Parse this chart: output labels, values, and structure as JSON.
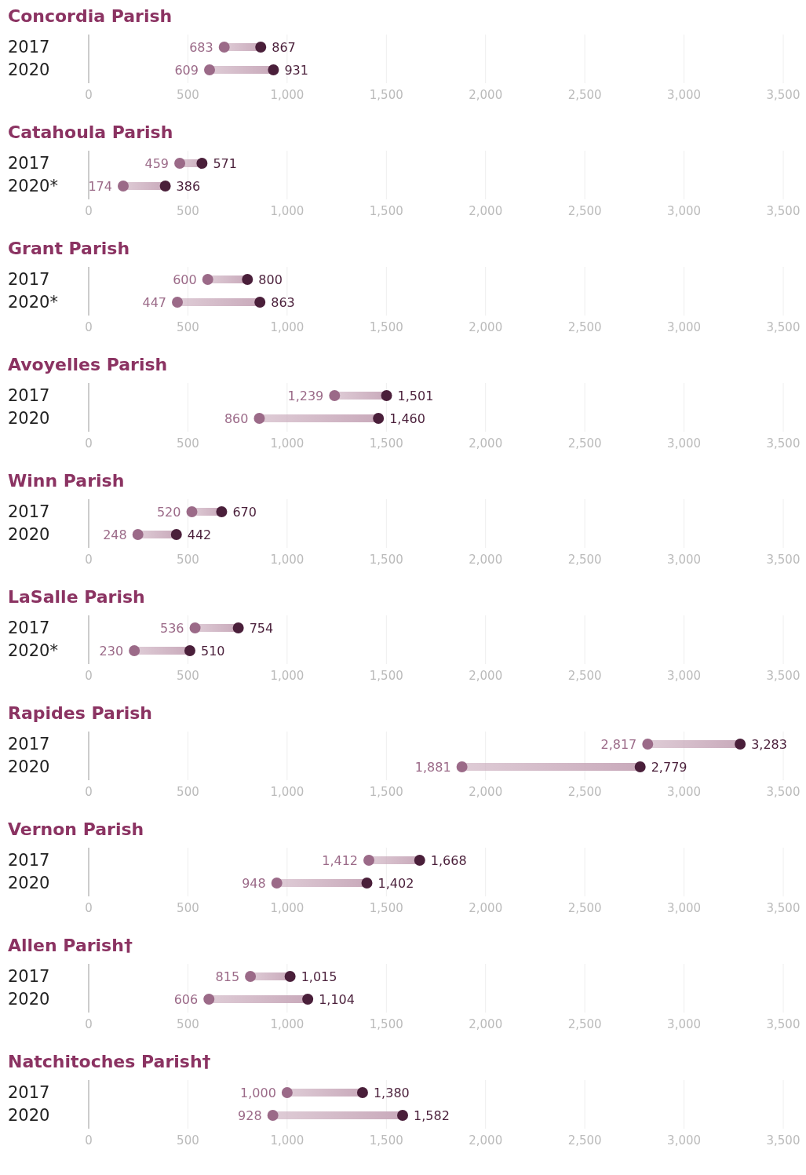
{
  "chart_data": [
    {
      "type": "scatter",
      "title": "Concordia Parish",
      "orientation": "horizontal",
      "marker": "circle",
      "grid": "x",
      "categories": [
        "2017",
        "2020"
      ],
      "xlim": [
        0,
        3500
      ],
      "xticks": [
        {
          "value": 0,
          "label": "0"
        },
        {
          "value": 500,
          "label": "500"
        },
        {
          "value": 1000,
          "label": "1,000"
        },
        {
          "value": 1500,
          "label": "1,500"
        },
        {
          "value": 2000,
          "label": "2,000"
        },
        {
          "value": 2500,
          "label": "2,500"
        },
        {
          "value": 3000,
          "label": "3,000"
        },
        {
          "value": 3500,
          "label": "3,500"
        }
      ],
      "series": [
        {
          "type": "bar",
          "color": "#c9aabb",
          "base": [
            683,
            609
          ],
          "values": [
            184,
            322
          ]
        },
        {
          "color": "#9b6a88",
          "values": [
            683,
            609
          ],
          "value_labels": [
            "683",
            "609"
          ]
        },
        {
          "color": "#4a1f3a",
          "values": [
            867,
            931
          ],
          "value_labels": [
            "867",
            "931"
          ]
        }
      ]
    },
    {
      "type": "scatter",
      "title": "Catahoula Parish",
      "orientation": "horizontal",
      "marker": "circle",
      "grid": "x",
      "categories": [
        "2017",
        "2020*"
      ],
      "xlim": [
        0,
        3500
      ],
      "xticks": [
        {
          "value": 0,
          "label": "0"
        },
        {
          "value": 500,
          "label": "500"
        },
        {
          "value": 1000,
          "label": "1,000"
        },
        {
          "value": 1500,
          "label": "1,500"
        },
        {
          "value": 2000,
          "label": "2,000"
        },
        {
          "value": 2500,
          "label": "2,500"
        },
        {
          "value": 3000,
          "label": "3,000"
        },
        {
          "value": 3500,
          "label": "3,500"
        }
      ],
      "series": [
        {
          "type": "bar",
          "color": "#c9aabb",
          "base": [
            459,
            174
          ],
          "values": [
            112,
            212
          ]
        },
        {
          "color": "#9b6a88",
          "values": [
            459,
            174
          ],
          "value_labels": [
            "459",
            "174"
          ]
        },
        {
          "color": "#4a1f3a",
          "values": [
            571,
            386
          ],
          "value_labels": [
            "571",
            "386"
          ]
        }
      ]
    },
    {
      "type": "scatter",
      "title": "Grant Parish",
      "orientation": "horizontal",
      "marker": "circle",
      "grid": "x",
      "categories": [
        "2017",
        "2020*"
      ],
      "xlim": [
        0,
        3500
      ],
      "xticks": [
        {
          "value": 0,
          "label": "0"
        },
        {
          "value": 500,
          "label": "500"
        },
        {
          "value": 1000,
          "label": "1,000"
        },
        {
          "value": 1500,
          "label": "1,500"
        },
        {
          "value": 2000,
          "label": "2,000"
        },
        {
          "value": 2500,
          "label": "2,500"
        },
        {
          "value": 3000,
          "label": "3,000"
        },
        {
          "value": 3500,
          "label": "3,500"
        }
      ],
      "series": [
        {
          "type": "bar",
          "color": "#c9aabb",
          "base": [
            600,
            447
          ],
          "values": [
            200,
            416
          ]
        },
        {
          "color": "#9b6a88",
          "values": [
            600,
            447
          ],
          "value_labels": [
            "600",
            "447"
          ]
        },
        {
          "color": "#4a1f3a",
          "values": [
            800,
            863
          ],
          "value_labels": [
            "800",
            "863"
          ]
        }
      ]
    },
    {
      "type": "scatter",
      "title": "Avoyelles Parish",
      "orientation": "horizontal",
      "marker": "circle",
      "grid": "x",
      "categories": [
        "2017",
        "2020"
      ],
      "xlim": [
        0,
        3500
      ],
      "xticks": [
        {
          "value": 0,
          "label": "0"
        },
        {
          "value": 500,
          "label": "500"
        },
        {
          "value": 1000,
          "label": "1,000"
        },
        {
          "value": 1500,
          "label": "1,500"
        },
        {
          "value": 2000,
          "label": "2,000"
        },
        {
          "value": 2500,
          "label": "2,500"
        },
        {
          "value": 3000,
          "label": "3,000"
        },
        {
          "value": 3500,
          "label": "3,500"
        }
      ],
      "series": [
        {
          "type": "bar",
          "color": "#c9aabb",
          "base": [
            1239,
            860
          ],
          "values": [
            262,
            600
          ]
        },
        {
          "color": "#9b6a88",
          "values": [
            1239,
            860
          ],
          "value_labels": [
            "1,239",
            "860"
          ]
        },
        {
          "color": "#4a1f3a",
          "values": [
            1501,
            1460
          ],
          "value_labels": [
            "1,501",
            "1,460"
          ]
        }
      ]
    },
    {
      "type": "scatter",
      "title": "Winn Parish",
      "orientation": "horizontal",
      "marker": "circle",
      "grid": "x",
      "categories": [
        "2017",
        "2020"
      ],
      "xlim": [
        0,
        3500
      ],
      "xticks": [
        {
          "value": 0,
          "label": "0"
        },
        {
          "value": 500,
          "label": "500"
        },
        {
          "value": 1000,
          "label": "1,000"
        },
        {
          "value": 1500,
          "label": "1,500"
        },
        {
          "value": 2000,
          "label": "2,000"
        },
        {
          "value": 2500,
          "label": "2,500"
        },
        {
          "value": 3000,
          "label": "3,000"
        },
        {
          "value": 3500,
          "label": "3,500"
        }
      ],
      "series": [
        {
          "type": "bar",
          "color": "#c9aabb",
          "base": [
            520,
            248
          ],
          "values": [
            150,
            194
          ]
        },
        {
          "color": "#9b6a88",
          "values": [
            520,
            248
          ],
          "value_labels": [
            "520",
            "248"
          ]
        },
        {
          "color": "#4a1f3a",
          "values": [
            670,
            442
          ],
          "value_labels": [
            "670",
            "442"
          ]
        }
      ]
    },
    {
      "type": "scatter",
      "title": "LaSalle Parish",
      "orientation": "horizontal",
      "marker": "circle",
      "grid": "x",
      "categories": [
        "2017",
        "2020*"
      ],
      "xlim": [
        0,
        3500
      ],
      "xticks": [
        {
          "value": 0,
          "label": "0"
        },
        {
          "value": 500,
          "label": "500"
        },
        {
          "value": 1000,
          "label": "1,000"
        },
        {
          "value": 1500,
          "label": "1,500"
        },
        {
          "value": 2000,
          "label": "2,000"
        },
        {
          "value": 2500,
          "label": "2,500"
        },
        {
          "value": 3000,
          "label": "3,000"
        },
        {
          "value": 3500,
          "label": "3,500"
        }
      ],
      "series": [
        {
          "type": "bar",
          "color": "#c9aabb",
          "base": [
            536,
            230
          ],
          "values": [
            218,
            280
          ]
        },
        {
          "color": "#9b6a88",
          "values": [
            536,
            230
          ],
          "value_labels": [
            "536",
            "230"
          ]
        },
        {
          "color": "#4a1f3a",
          "values": [
            754,
            510
          ],
          "value_labels": [
            "754",
            "510"
          ]
        }
      ]
    },
    {
      "type": "scatter",
      "title": "Rapides Parish",
      "orientation": "horizontal",
      "marker": "circle",
      "grid": "x",
      "categories": [
        "2017",
        "2020"
      ],
      "xlim": [
        0,
        3500
      ],
      "xticks": [
        {
          "value": 0,
          "label": "0"
        },
        {
          "value": 500,
          "label": "500"
        },
        {
          "value": 1000,
          "label": "1,000"
        },
        {
          "value": 1500,
          "label": "1,500"
        },
        {
          "value": 2000,
          "label": "2,000"
        },
        {
          "value": 2500,
          "label": "2,500"
        },
        {
          "value": 3000,
          "label": "3,000"
        },
        {
          "value": 3500,
          "label": "3,500"
        }
      ],
      "series": [
        {
          "type": "bar",
          "color": "#c9aabb",
          "base": [
            2817,
            1881
          ],
          "values": [
            466,
            898
          ]
        },
        {
          "color": "#9b6a88",
          "values": [
            2817,
            1881
          ],
          "value_labels": [
            "2,817",
            "1,881"
          ]
        },
        {
          "color": "#4a1f3a",
          "values": [
            3283,
            2779
          ],
          "value_labels": [
            "3,283",
            "2,779"
          ]
        }
      ]
    },
    {
      "type": "scatter",
      "title": "Vernon Parish",
      "orientation": "horizontal",
      "marker": "circle",
      "grid": "x",
      "categories": [
        "2017",
        "2020"
      ],
      "xlim": [
        0,
        3500
      ],
      "xticks": [
        {
          "value": 0,
          "label": "0"
        },
        {
          "value": 500,
          "label": "500"
        },
        {
          "value": 1000,
          "label": "1,000"
        },
        {
          "value": 1500,
          "label": "1,500"
        },
        {
          "value": 2000,
          "label": "2,000"
        },
        {
          "value": 2500,
          "label": "2,500"
        },
        {
          "value": 3000,
          "label": "3,000"
        },
        {
          "value": 3500,
          "label": "3,500"
        }
      ],
      "series": [
        {
          "type": "bar",
          "color": "#c9aabb",
          "base": [
            1412,
            948
          ],
          "values": [
            256,
            454
          ]
        },
        {
          "color": "#9b6a88",
          "values": [
            1412,
            948
          ],
          "value_labels": [
            "1,412",
            "948"
          ]
        },
        {
          "color": "#4a1f3a",
          "values": [
            1668,
            1402
          ],
          "value_labels": [
            "1,668",
            "1,402"
          ]
        }
      ]
    },
    {
      "type": "scatter",
      "title": "Allen Parish†",
      "orientation": "horizontal",
      "marker": "circle",
      "grid": "x",
      "categories": [
        "2017",
        "2020"
      ],
      "xlim": [
        0,
        3500
      ],
      "xticks": [
        {
          "value": 0,
          "label": "0"
        },
        {
          "value": 500,
          "label": "500"
        },
        {
          "value": 1000,
          "label": "1,000"
        },
        {
          "value": 1500,
          "label": "1,500"
        },
        {
          "value": 2000,
          "label": "2,000"
        },
        {
          "value": 2500,
          "label": "2,500"
        },
        {
          "value": 3000,
          "label": "3,000"
        },
        {
          "value": 3500,
          "label": "3,500"
        }
      ],
      "series": [
        {
          "type": "bar",
          "color": "#c9aabb",
          "base": [
            815,
            606
          ],
          "values": [
            200,
            498
          ]
        },
        {
          "color": "#9b6a88",
          "values": [
            815,
            606
          ],
          "value_labels": [
            "815",
            "606"
          ]
        },
        {
          "color": "#4a1f3a",
          "values": [
            1015,
            1104
          ],
          "value_labels": [
            "1,015",
            "1,104"
          ]
        }
      ]
    },
    {
      "type": "scatter",
      "title": "Natchitoches Parish†",
      "orientation": "horizontal",
      "marker": "circle",
      "grid": "x",
      "categories": [
        "2017",
        "2020"
      ],
      "xlim": [
        0,
        3500
      ],
      "xticks": [
        {
          "value": 0,
          "label": "0"
        },
        {
          "value": 500,
          "label": "500"
        },
        {
          "value": 1000,
          "label": "1,000"
        },
        {
          "value": 1500,
          "label": "1,500"
        },
        {
          "value": 2000,
          "label": "2,000"
        },
        {
          "value": 2500,
          "label": "2,500"
        },
        {
          "value": 3000,
          "label": "3,000"
        },
        {
          "value": 3500,
          "label": "3,500"
        }
      ],
      "series": [
        {
          "type": "bar",
          "color": "#c9aabb",
          "base": [
            1000,
            928
          ],
          "values": [
            380,
            654
          ]
        },
        {
          "color": "#9b6a88",
          "values": [
            1000,
            928
          ],
          "value_labels": [
            "1,000",
            "928"
          ]
        },
        {
          "color": "#4a1f3a",
          "values": [
            1380,
            1582
          ],
          "value_labels": [
            "1,380",
            "1,582"
          ]
        }
      ]
    }
  ]
}
